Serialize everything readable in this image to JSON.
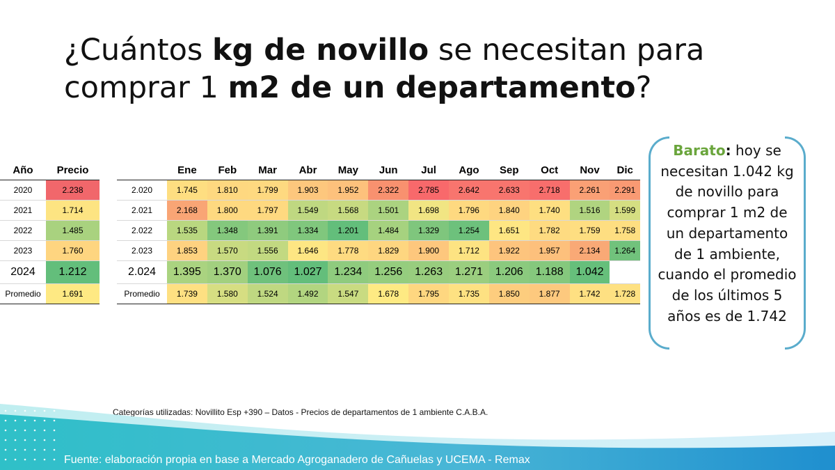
{
  "title": {
    "part1": "¿Cuántos ",
    "bold1": "kg de novillo",
    "part2": " se necesitan para comprar 1 ",
    "bold2": "m2 de un departamento",
    "part3": "?"
  },
  "annual_table": {
    "headers": [
      "Año",
      "Precio"
    ],
    "rows": [
      {
        "label": "2020",
        "value": "2.238",
        "color": "#f1676b"
      },
      {
        "label": "2021",
        "value": "1.714",
        "color": "#fde482"
      },
      {
        "label": "2022",
        "value": "1.485",
        "color": "#a9d27f"
      },
      {
        "label": "2023",
        "value": "1.760",
        "color": "#fed580"
      },
      {
        "label": "2024",
        "value": "1.212",
        "color": "#63be7b"
      },
      {
        "label": "Promedio",
        "value": "1.691",
        "color": "#fee983"
      }
    ]
  },
  "monthly_table": {
    "headers": [
      "",
      "Ene",
      "Feb",
      "Mar",
      "Abr",
      "May",
      "Jun",
      "Jul",
      "Ago",
      "Sep",
      "Oct",
      "Nov",
      "Dic"
    ],
    "rows": [
      {
        "label": "2.020",
        "values": [
          "1.745",
          "1.810",
          "1.799",
          "1.903",
          "1.952",
          "2.322",
          "2.785",
          "2.642",
          "2.633",
          "2.718",
          "2.261",
          "2.291"
        ],
        "colors": [
          "#fede81",
          "#fed880",
          "#fed980",
          "#fdc77d",
          "#fdc17c",
          "#f8916f",
          "#f8696b",
          "#f8756e",
          "#f8756e",
          "#f86e6c",
          "#faa075",
          "#f99a73"
        ]
      },
      {
        "label": "2.021",
        "values": [
          "2.168",
          "1.800",
          "1.797",
          "1.549",
          "1.568",
          "1.501",
          "1.698",
          "1.796",
          "1.840",
          "1.740",
          "1.516",
          "1.599"
        ],
        "colors": [
          "#f9a575",
          "#fed980",
          "#fed980",
          "#bfd881",
          "#c7da81",
          "#abd380",
          "#f1e583",
          "#fed980",
          "#fed380",
          "#fedf81",
          "#b0d480",
          "#d5de82"
        ]
      },
      {
        "label": "2.022",
        "values": [
          "1.535",
          "1.348",
          "1.391",
          "1.334",
          "1.201",
          "1.484",
          "1.329",
          "1.254",
          "1.651",
          "1.782",
          "1.759",
          "1.758"
        ],
        "colors": [
          "#b9d780",
          "#84c87d",
          "#8fcb7e",
          "#80c77d",
          "#63be7b",
          "#a6d27f",
          "#7fc67d",
          "#6dc17c",
          "#fee683",
          "#fedb81",
          "#fede81",
          "#fede81"
        ]
      },
      {
        "label": "2.023",
        "values": [
          "1.853",
          "1.570",
          "1.556",
          "1.646",
          "1.778",
          "1.829",
          "1.900",
          "1.712",
          "1.922",
          "1.957",
          "2.134",
          "1.264"
        ],
        "colors": [
          "#fed280",
          "#c8da81",
          "#c2d981",
          "#fde683",
          "#fedb81",
          "#fed680",
          "#fdc77d",
          "#fde382",
          "#fdc47d",
          "#fdc07c",
          "#f9a976",
          "#71c27c"
        ]
      },
      {
        "label": "2.024",
        "values": [
          "1.395",
          "1.370",
          "1.076",
          "1.027",
          "1.234",
          "1.256",
          "1.263",
          "1.271",
          "1.206",
          "1.188",
          "1.042",
          ""
        ],
        "colors": [
          "#aad380",
          "#a2d07f",
          "#6fc17c",
          "#63be7b",
          "#8fcb7e",
          "#95cd7e",
          "#98cd7e",
          "#9bce7f",
          "#8bca7e",
          "#85c87d",
          "#66bf7b",
          "#ffffff"
        ]
      },
      {
        "label": "Promedio",
        "values": [
          "1.739",
          "1.580",
          "1.524",
          "1.492",
          "1.547",
          "1.678",
          "1.795",
          "1.735",
          "1.850",
          "1.877",
          "1.742",
          "1.728"
        ],
        "colors": [
          "#fee082",
          "#d6de82",
          "#bfd881",
          "#b2d580",
          "#c9db81",
          "#feea83",
          "#fed780",
          "#fee182",
          "#fdcd7e",
          "#fdc97e",
          "#fee082",
          "#fee182"
        ]
      }
    ]
  },
  "callout": {
    "highlight": "Barato",
    "colon": ":",
    "text": " hoy se necesitan 1.042 kg de novillo para comprar 1 m2 de un departamento de 1 ambiente, cuando el promedio de los últimos 5 años es de 1.742",
    "border_color": "#5aaccc"
  },
  "note": "Categorías utilizadas: Novillito Esp +390 –  Datos - Precios de departamentos de 1 ambiente C.A.B.A.",
  "source": "Fuente: elaboración propia en base a Mercado Agroganadero de Cañuelas y UCEMA - Remax"
}
